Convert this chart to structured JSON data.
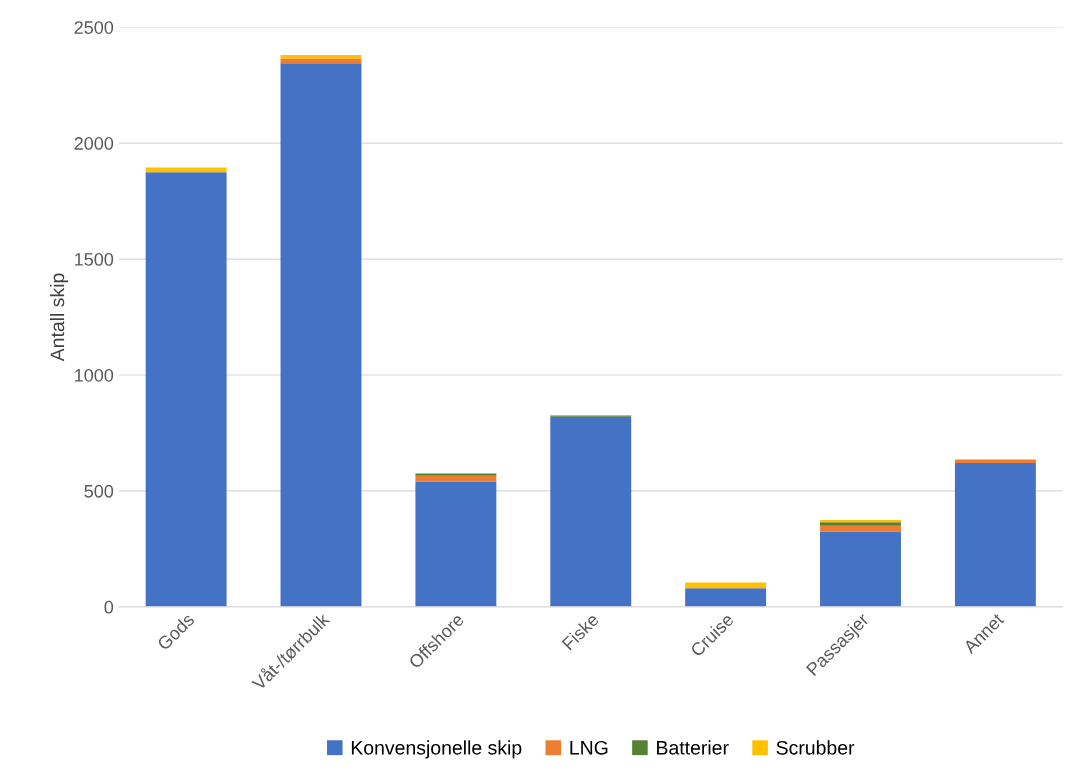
{
  "chart_data": {
    "type": "bar",
    "stacked": true,
    "ylabel": "Antall skip",
    "categories": [
      "Gods",
      "Våt-/tørrbulk",
      "Offshore",
      "Fiske",
      "Cruise",
      "Passasjer",
      "Annet"
    ],
    "series": [
      {
        "name": "Konvensjonelle skip",
        "color": "#4472c4",
        "values": [
          1875,
          2345,
          540,
          820,
          80,
          325,
          620
        ]
      },
      {
        "name": "LNG",
        "color": "#ed7d31",
        "values": [
          0,
          20,
          25,
          0,
          0,
          25,
          15
        ]
      },
      {
        "name": "Batterier",
        "color": "#548235",
        "values": [
          0,
          0,
          10,
          5,
          0,
          15,
          0
        ]
      },
      {
        "name": "Scrubber",
        "color": "#ffc000",
        "values": [
          20,
          15,
          0,
          0,
          25,
          10,
          0
        ]
      }
    ],
    "ylim": [
      0,
      2500
    ],
    "yticks": [
      0,
      500,
      1000,
      1500,
      2000,
      2500
    ],
    "grid": "y",
    "legend": "bottom"
  }
}
